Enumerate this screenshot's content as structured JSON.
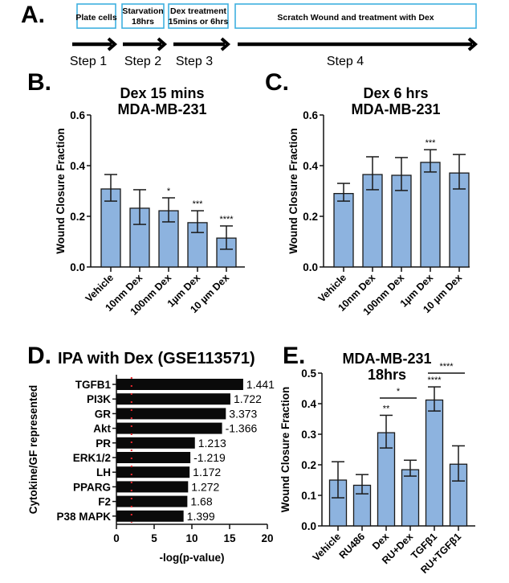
{
  "panel_labels": {
    "a": "A.",
    "b": "B.",
    "c": "C.",
    "d": "D.",
    "e": "E."
  },
  "workflow": {
    "box_color": "#3fb0e0",
    "steps": [
      {
        "box_lines": [
          "Plate cells"
        ],
        "step_label": "Step 1"
      },
      {
        "box_lines": [
          "Starvation",
          "18hrs"
        ],
        "step_label": "Step 2"
      },
      {
        "box_lines": [
          "Dex treatment",
          "15mins or 6hrs"
        ],
        "step_label": "Step 3"
      },
      {
        "box_lines": [
          "Scratch Wound and treatment with Dex"
        ],
        "step_label": "Step 4"
      }
    ]
  },
  "chart_data": [
    {
      "id": "B",
      "type": "bar",
      "title": [
        "Dex 15 mins",
        "MDA-MB-231"
      ],
      "xlabel": "",
      "ylabel": "Wound Closure Fraction",
      "ylim": [
        0,
        0.6
      ],
      "yticks": [
        0.0,
        0.2,
        0.4,
        0.6
      ],
      "ytick_labels": [
        "0.0",
        "0.2",
        "0.4",
        "0.6"
      ],
      "bar_color": "#8db3df",
      "categories": [
        "Vehicle",
        "10nm Dex",
        "100nm Dex",
        "1µm Dex",
        "10 µm Dex"
      ],
      "values": [
        0.308,
        0.232,
        0.222,
        0.175,
        0.114
      ],
      "error_high": [
        0.365,
        0.305,
        0.273,
        0.222,
        0.162
      ],
      "error_low": [
        0.26,
        0.168,
        0.178,
        0.136,
        0.07
      ],
      "significance": [
        "",
        "",
        "*",
        "***",
        "****"
      ],
      "grid": false
    },
    {
      "id": "C",
      "type": "bar",
      "title": [
        "Dex 6 hrs",
        "MDA-MB-231"
      ],
      "xlabel": "",
      "ylabel": "Wound Closure Fraction",
      "ylim": [
        0,
        0.6
      ],
      "yticks": [
        0.0,
        0.2,
        0.4,
        0.6
      ],
      "ytick_labels": [
        "0.0",
        "0.2",
        "0.4",
        "0.6"
      ],
      "bar_color": "#8db3df",
      "categories": [
        "Vehicle",
        "10nm Dex",
        "100nm Dex",
        "1µm Dex",
        "10 µm Dex"
      ],
      "values": [
        0.29,
        0.365,
        0.362,
        0.413,
        0.371
      ],
      "error_high": [
        0.33,
        0.435,
        0.432,
        0.463,
        0.444
      ],
      "error_low": [
        0.26,
        0.305,
        0.302,
        0.375,
        0.308
      ],
      "significance": [
        "",
        "",
        "",
        "***",
        ""
      ],
      "grid": false
    },
    {
      "id": "D",
      "type": "bar",
      "orientation": "horizontal",
      "title": [
        "IPA with Dex (GSE113571)"
      ],
      "xlabel": "-log(p-value)",
      "ylabel": "Cytokine/GF represented",
      "xlim": [
        0,
        20
      ],
      "xticks": [
        0,
        5,
        10,
        15,
        20
      ],
      "xtick_labels": [
        "0",
        "5",
        "10",
        "15",
        "20"
      ],
      "bar_color": "#0a0a0a",
      "threshold_line": {
        "value": 2.0,
        "color": "#e8262b",
        "style": "dotted"
      },
      "categories": [
        "TGFB1",
        "PI3K",
        "GR",
        "Akt",
        "PR",
        "ERK1/2",
        "LH",
        "PPARG",
        "F2",
        "P38 MAPK"
      ],
      "values": [
        16.8,
        15.1,
        14.5,
        14.0,
        10.4,
        9.8,
        9.7,
        9.5,
        9.4,
        8.9
      ],
      "annotations": [
        "1.441",
        "1.722",
        "3.373",
        "-1.366",
        "1.213",
        "-1.219",
        "1.172",
        "1.272",
        "1.68",
        "1.399"
      ],
      "grid": false
    },
    {
      "id": "E",
      "type": "bar",
      "title": [
        "MDA-MB-231",
        "18hrs"
      ],
      "xlabel": "",
      "ylabel": "Wound Closure Fraction",
      "ylim": [
        0,
        0.5
      ],
      "yticks": [
        0.0,
        0.1,
        0.2,
        0.3,
        0.4,
        0.5
      ],
      "ytick_labels": [
        "0.0",
        "0.1",
        "0.2",
        "0.3",
        "0.4",
        "0.5"
      ],
      "bar_color": "#8db3df",
      "categories": [
        "Vehicle",
        "RU486",
        "Dex",
        "RU+Dex",
        "TGFβ1",
        "RU+TGFβ1"
      ],
      "values": [
        0.15,
        0.133,
        0.305,
        0.184,
        0.412,
        0.202
      ],
      "error_high": [
        0.21,
        0.168,
        0.362,
        0.215,
        0.455,
        0.262
      ],
      "error_low": [
        0.092,
        0.105,
        0.255,
        0.163,
        0.376,
        0.147
      ],
      "significance": [
        "",
        "",
        "**",
        "",
        "****",
        ""
      ],
      "brackets": [
        {
          "from": 2,
          "to": 3,
          "label": "*"
        },
        {
          "from": 4,
          "to": 5,
          "label": "****"
        }
      ],
      "grid": false
    }
  ]
}
